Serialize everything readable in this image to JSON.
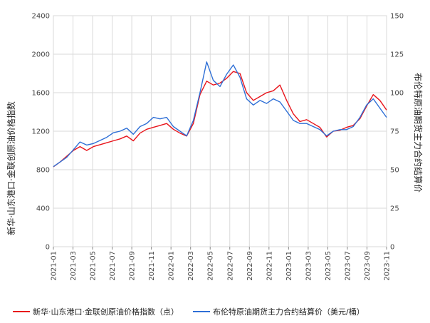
{
  "chart_data": {
    "type": "line",
    "y_left_label": "新华·山东港口·金联创原油价格指数",
    "y_right_label": "布伦特原油期货主力合约结算价",
    "ylim_left": [
      0,
      2400
    ],
    "ylim_right": [
      0,
      150
    ],
    "yticks_left": [
      "0",
      "400",
      "800",
      "1200",
      "1600",
      "2000",
      "2400"
    ],
    "yticks_right": [
      "0",
      "25",
      "50",
      "75",
      "100",
      "125",
      "150"
    ],
    "x_ticks": [
      "2021-01",
      "2021-03",
      "2021-05",
      "2021-07",
      "2021-09",
      "2021-11",
      "2022-01",
      "2022-03",
      "2022-05",
      "2022-07",
      "2022-09",
      "2022-11",
      "2023-01",
      "2023-03",
      "2023-05",
      "2023-07",
      "2023-09",
      "2023-11"
    ],
    "grid": true,
    "legend_position": "bottom",
    "series": [
      {
        "name": "新华·山东港口·金联创原油价格指数（点）",
        "axis": "left",
        "color": "#e8141b",
        "values": [
          830,
          880,
          940,
          1000,
          1040,
          1000,
          1040,
          1060,
          1080,
          1100,
          1120,
          1150,
          1100,
          1180,
          1220,
          1240,
          1260,
          1280,
          1220,
          1180,
          1150,
          1280,
          1580,
          1720,
          1680,
          1700,
          1750,
          1820,
          1800,
          1600,
          1520,
          1560,
          1600,
          1620,
          1680,
          1520,
          1380,
          1300,
          1320,
          1280,
          1240,
          1140,
          1200,
          1210,
          1240,
          1260,
          1330,
          1460,
          1580,
          1520,
          1420
        ]
      },
      {
        "name": "布伦特原油期货主力合约结算价（美元/桶）",
        "axis": "right",
        "color": "#2e6fd6",
        "values": [
          52,
          55,
          58,
          63,
          68,
          66,
          67,
          69,
          71,
          74,
          75,
          77,
          73,
          78,
          80,
          84,
          83,
          84,
          78,
          75,
          72,
          82,
          100,
          120,
          108,
          104,
          112,
          118,
          110,
          96,
          92,
          95,
          93,
          96,
          94,
          88,
          82,
          80,
          80,
          78,
          76,
          72,
          75,
          76,
          76,
          78,
          84,
          92,
          96,
          90,
          84
        ]
      }
    ]
  }
}
